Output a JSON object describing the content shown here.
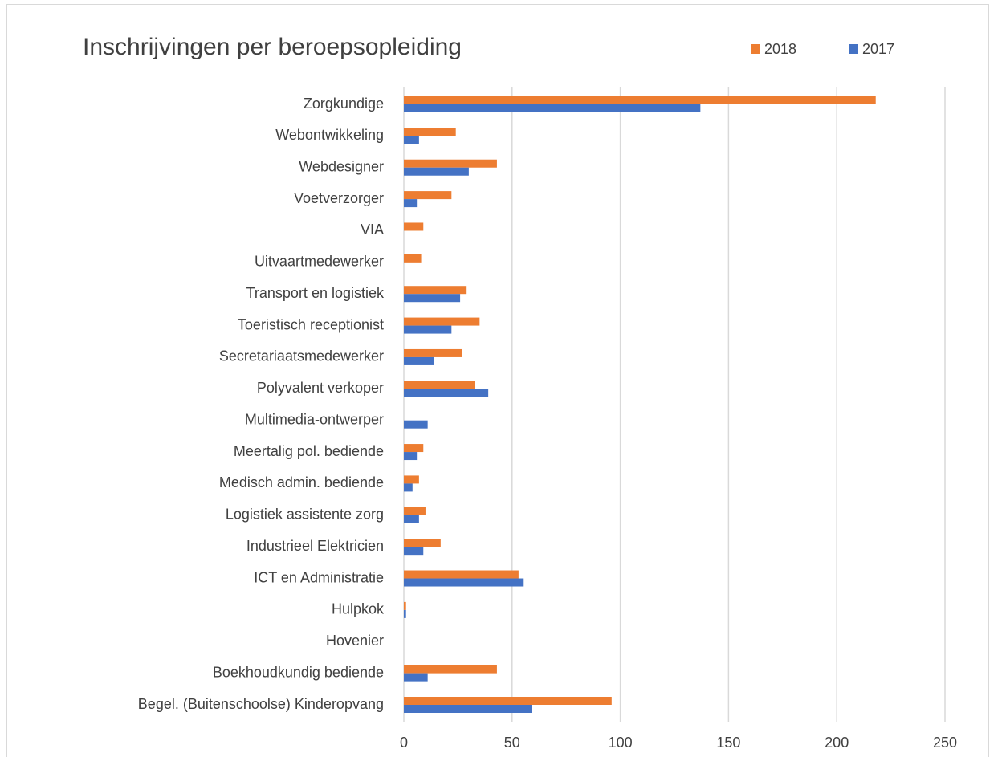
{
  "chart_data": {
    "type": "hbar",
    "title": "Inschrijvingen per beroepsopleiding",
    "categories": [
      "Zorgkundige",
      "Webontwikkeling",
      "Webdesigner",
      "Voetverzorger",
      "VIA",
      "Uitvaartmedewerker",
      "Transport en logistiek",
      "Toeristisch receptionist",
      "Secretariaatsmedewerker",
      "Polyvalent verkoper",
      "Multimedia-ontwerper",
      "Meertalig pol. bediende",
      "Medisch admin. bediende",
      "Logistiek assistente zorg",
      "Industrieel Elektricien",
      "ICT en Administratie",
      "Hulpkok",
      "Hovenier",
      "Boekhoudkundig bediende",
      "Begel. (Buitenschoolse) Kinderopvang"
    ],
    "series": [
      {
        "name": "2018",
        "color": "#ED7D31",
        "values": [
          218,
          24,
          43,
          22,
          9,
          8,
          29,
          35,
          27,
          33,
          0,
          9,
          7,
          10,
          17,
          53,
          1,
          0,
          43,
          96
        ]
      },
      {
        "name": "2017",
        "color": "#4472C4",
        "values": [
          137,
          7,
          30,
          6,
          0,
          0,
          26,
          22,
          14,
          39,
          11,
          6,
          4,
          7,
          9,
          55,
          1,
          0,
          11,
          59
        ]
      }
    ],
    "xlim": [
      0,
      250
    ],
    "xticks": [
      0,
      50,
      100,
      150,
      200,
      250
    ],
    "grid": true,
    "legend": "top-right"
  }
}
